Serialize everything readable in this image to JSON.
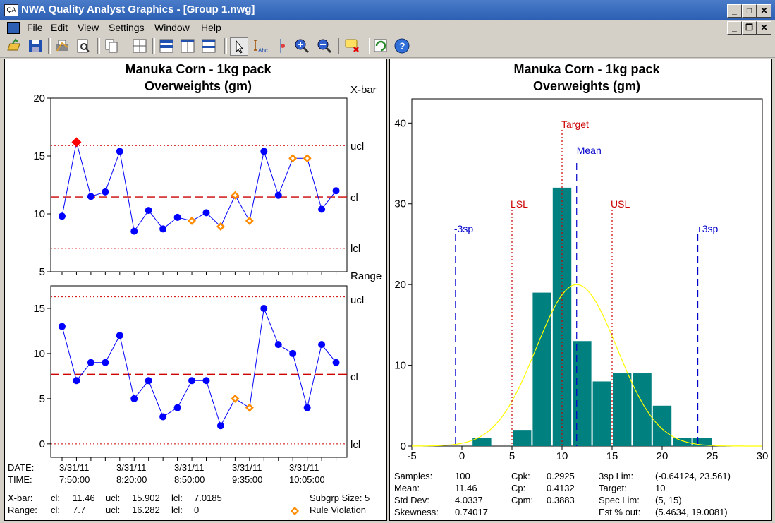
{
  "window": {
    "title": "NWA Quality Analyst Graphics - [Group 1.nwg]",
    "app_icon_text": "QA"
  },
  "menu": [
    "File",
    "Edit",
    "View",
    "Settings",
    "Window",
    "Help"
  ],
  "toolbar": [
    "open-icon",
    "save-icon",
    "print-icon",
    "print-preview-icon",
    "copy-icon",
    "layout-grid-icon",
    "tile-icon",
    "split-vertical-icon",
    "split-horizontal-icon",
    "pointer-icon",
    "text-annotate-icon",
    "marker-icon",
    "zoom-in-icon",
    "zoom-out-icon",
    "clear-comments-icon",
    "refresh-icon",
    "help-icon"
  ],
  "colors": {
    "line": "#0000ff",
    "limit": "#cc0000",
    "violation": "#ff8c00",
    "out": "#ff0000",
    "bar": "#00807f",
    "curve": "#ffff00",
    "marker": "#0000cc"
  },
  "left_chart": {
    "title": "Manuka Corn - 1kg pack",
    "subtitle": "Overweights (gm)",
    "xbar_label": "X-bar",
    "range_label": "Range",
    "limit_labels": {
      "ucl": "ucl",
      "cl": "cl",
      "lcl": "lcl"
    },
    "date_label": "DATE:",
    "time_label": "TIME:",
    "dates": [
      "3/31/11",
      "3/31/11",
      "3/31/11",
      "3/31/11",
      "3/31/11"
    ],
    "times": [
      "7:50:00",
      "8:20:00",
      "8:50:00",
      "9:35:00",
      "10:05:00"
    ],
    "xbar_row": {
      "label": "X-bar:",
      "cl_label": "cl:",
      "cl": "11.46",
      "ucl_label": "ucl:",
      "ucl": "15.902",
      "lcl_label": "lcl:",
      "lcl": "7.0185"
    },
    "range_row": {
      "label": "Range:",
      "cl_label": "cl:",
      "cl": "7.7",
      "ucl_label": "ucl:",
      "ucl": "16.282",
      "lcl_label": "lcl:",
      "lcl": "0"
    },
    "subgroup_size": "Subgrp Size: 5",
    "legend_violation": "Rule Violation"
  },
  "right_chart": {
    "title": "Manuka Corn - 1kg pack",
    "subtitle": "Overweights (gm)",
    "markers": {
      "target": "Target",
      "mean": "Mean",
      "lsl": "LSL",
      "usl": "USL",
      "minus3": "-3sp",
      "plus3": "+3sp"
    },
    "stats": {
      "samples_label": "Samples:",
      "samples": "100",
      "mean_label": "Mean:",
      "mean": "11.46",
      "stddev_label": "Std Dev:",
      "stddev": "4.0337",
      "skew_label": "Skewness:",
      "skew": "0.74017",
      "cpk_label": "Cpk:",
      "cpk": "0.2925",
      "cp_label": "Cp:",
      "cp": "0.4132",
      "cpm_label": "Cpm:",
      "cpm": "0.3883",
      "lim3_label": "3sp Lim:",
      "lim3": "(-0.64124, 23.561)",
      "target_label": "Target:",
      "target": "10",
      "speclim_label": "Spec Lim:",
      "speclim": "(5, 15)",
      "estout_label": "Est % out:",
      "estout": "(5.4634, 19.0081)"
    }
  },
  "chart_data": [
    {
      "type": "line",
      "name": "X-bar",
      "x": [
        1,
        2,
        3,
        4,
        5,
        6,
        7,
        8,
        9,
        10,
        11,
        12,
        13,
        14,
        15,
        16,
        17,
        18,
        19,
        20
      ],
      "values": [
        9.8,
        16.2,
        11.5,
        11.9,
        15.4,
        8.5,
        10.3,
        8.7,
        9.7,
        9.4,
        10.1,
        8.9,
        11.6,
        9.4,
        15.4,
        11.6,
        14.8,
        14.8,
        10.4,
        12.0
      ],
      "flags": [
        "n",
        "out",
        "n",
        "n",
        "n",
        "n",
        "n",
        "n",
        "n",
        "v",
        "n",
        "v",
        "v",
        "v",
        "n",
        "n",
        "v",
        "v",
        "n",
        "n"
      ],
      "ylim": [
        5,
        20
      ],
      "yticks": [
        5,
        10,
        15,
        20
      ],
      "ucl": 15.902,
      "cl": 11.46,
      "lcl": 7.0185
    },
    {
      "type": "line",
      "name": "Range",
      "x": [
        1,
        2,
        3,
        4,
        5,
        6,
        7,
        8,
        9,
        10,
        11,
        12,
        13,
        14,
        15,
        16,
        17,
        18,
        19,
        20
      ],
      "values": [
        13,
        7,
        9,
        9,
        12,
        5,
        7,
        3,
        4,
        7,
        7,
        2,
        5,
        4,
        15,
        11,
        10,
        4,
        11,
        9
      ],
      "flags": [
        "n",
        "n",
        "n",
        "n",
        "n",
        "n",
        "n",
        "n",
        "n",
        "n",
        "n",
        "n",
        "v",
        "v",
        "n",
        "n",
        "n",
        "n",
        "n",
        "n"
      ],
      "ylim": [
        -1.5,
        17.5
      ],
      "yticks": [
        0,
        5,
        10,
        15
      ],
      "ucl": 16.282,
      "cl": 7.7,
      "lcl": 0
    },
    {
      "type": "bar",
      "name": "Histogram",
      "bins": [
        [
          1,
          3,
          1
        ],
        [
          5,
          7,
          2
        ],
        [
          7,
          9,
          19
        ],
        [
          9,
          11,
          32
        ],
        [
          11,
          13,
          13
        ],
        [
          13,
          15,
          8
        ],
        [
          15,
          17,
          9
        ],
        [
          17,
          19,
          9
        ],
        [
          19,
          21,
          5
        ],
        [
          21,
          23,
          1
        ],
        [
          23,
          25,
          1
        ]
      ],
      "xlim": [
        -5,
        30
      ],
      "xticks": [
        -5,
        0,
        5,
        10,
        15,
        20,
        25,
        30
      ],
      "ylim": [
        0,
        43
      ],
      "yticks": [
        0,
        10,
        20,
        30,
        40
      ],
      "normal_mean": 11.46,
      "normal_sd": 4.0337,
      "normal_peak": 20,
      "lines": {
        "minus3": -0.64124,
        "lsl": 5,
        "target": 10,
        "mean": 11.46,
        "usl": 15,
        "plus3": 23.561
      }
    }
  ]
}
